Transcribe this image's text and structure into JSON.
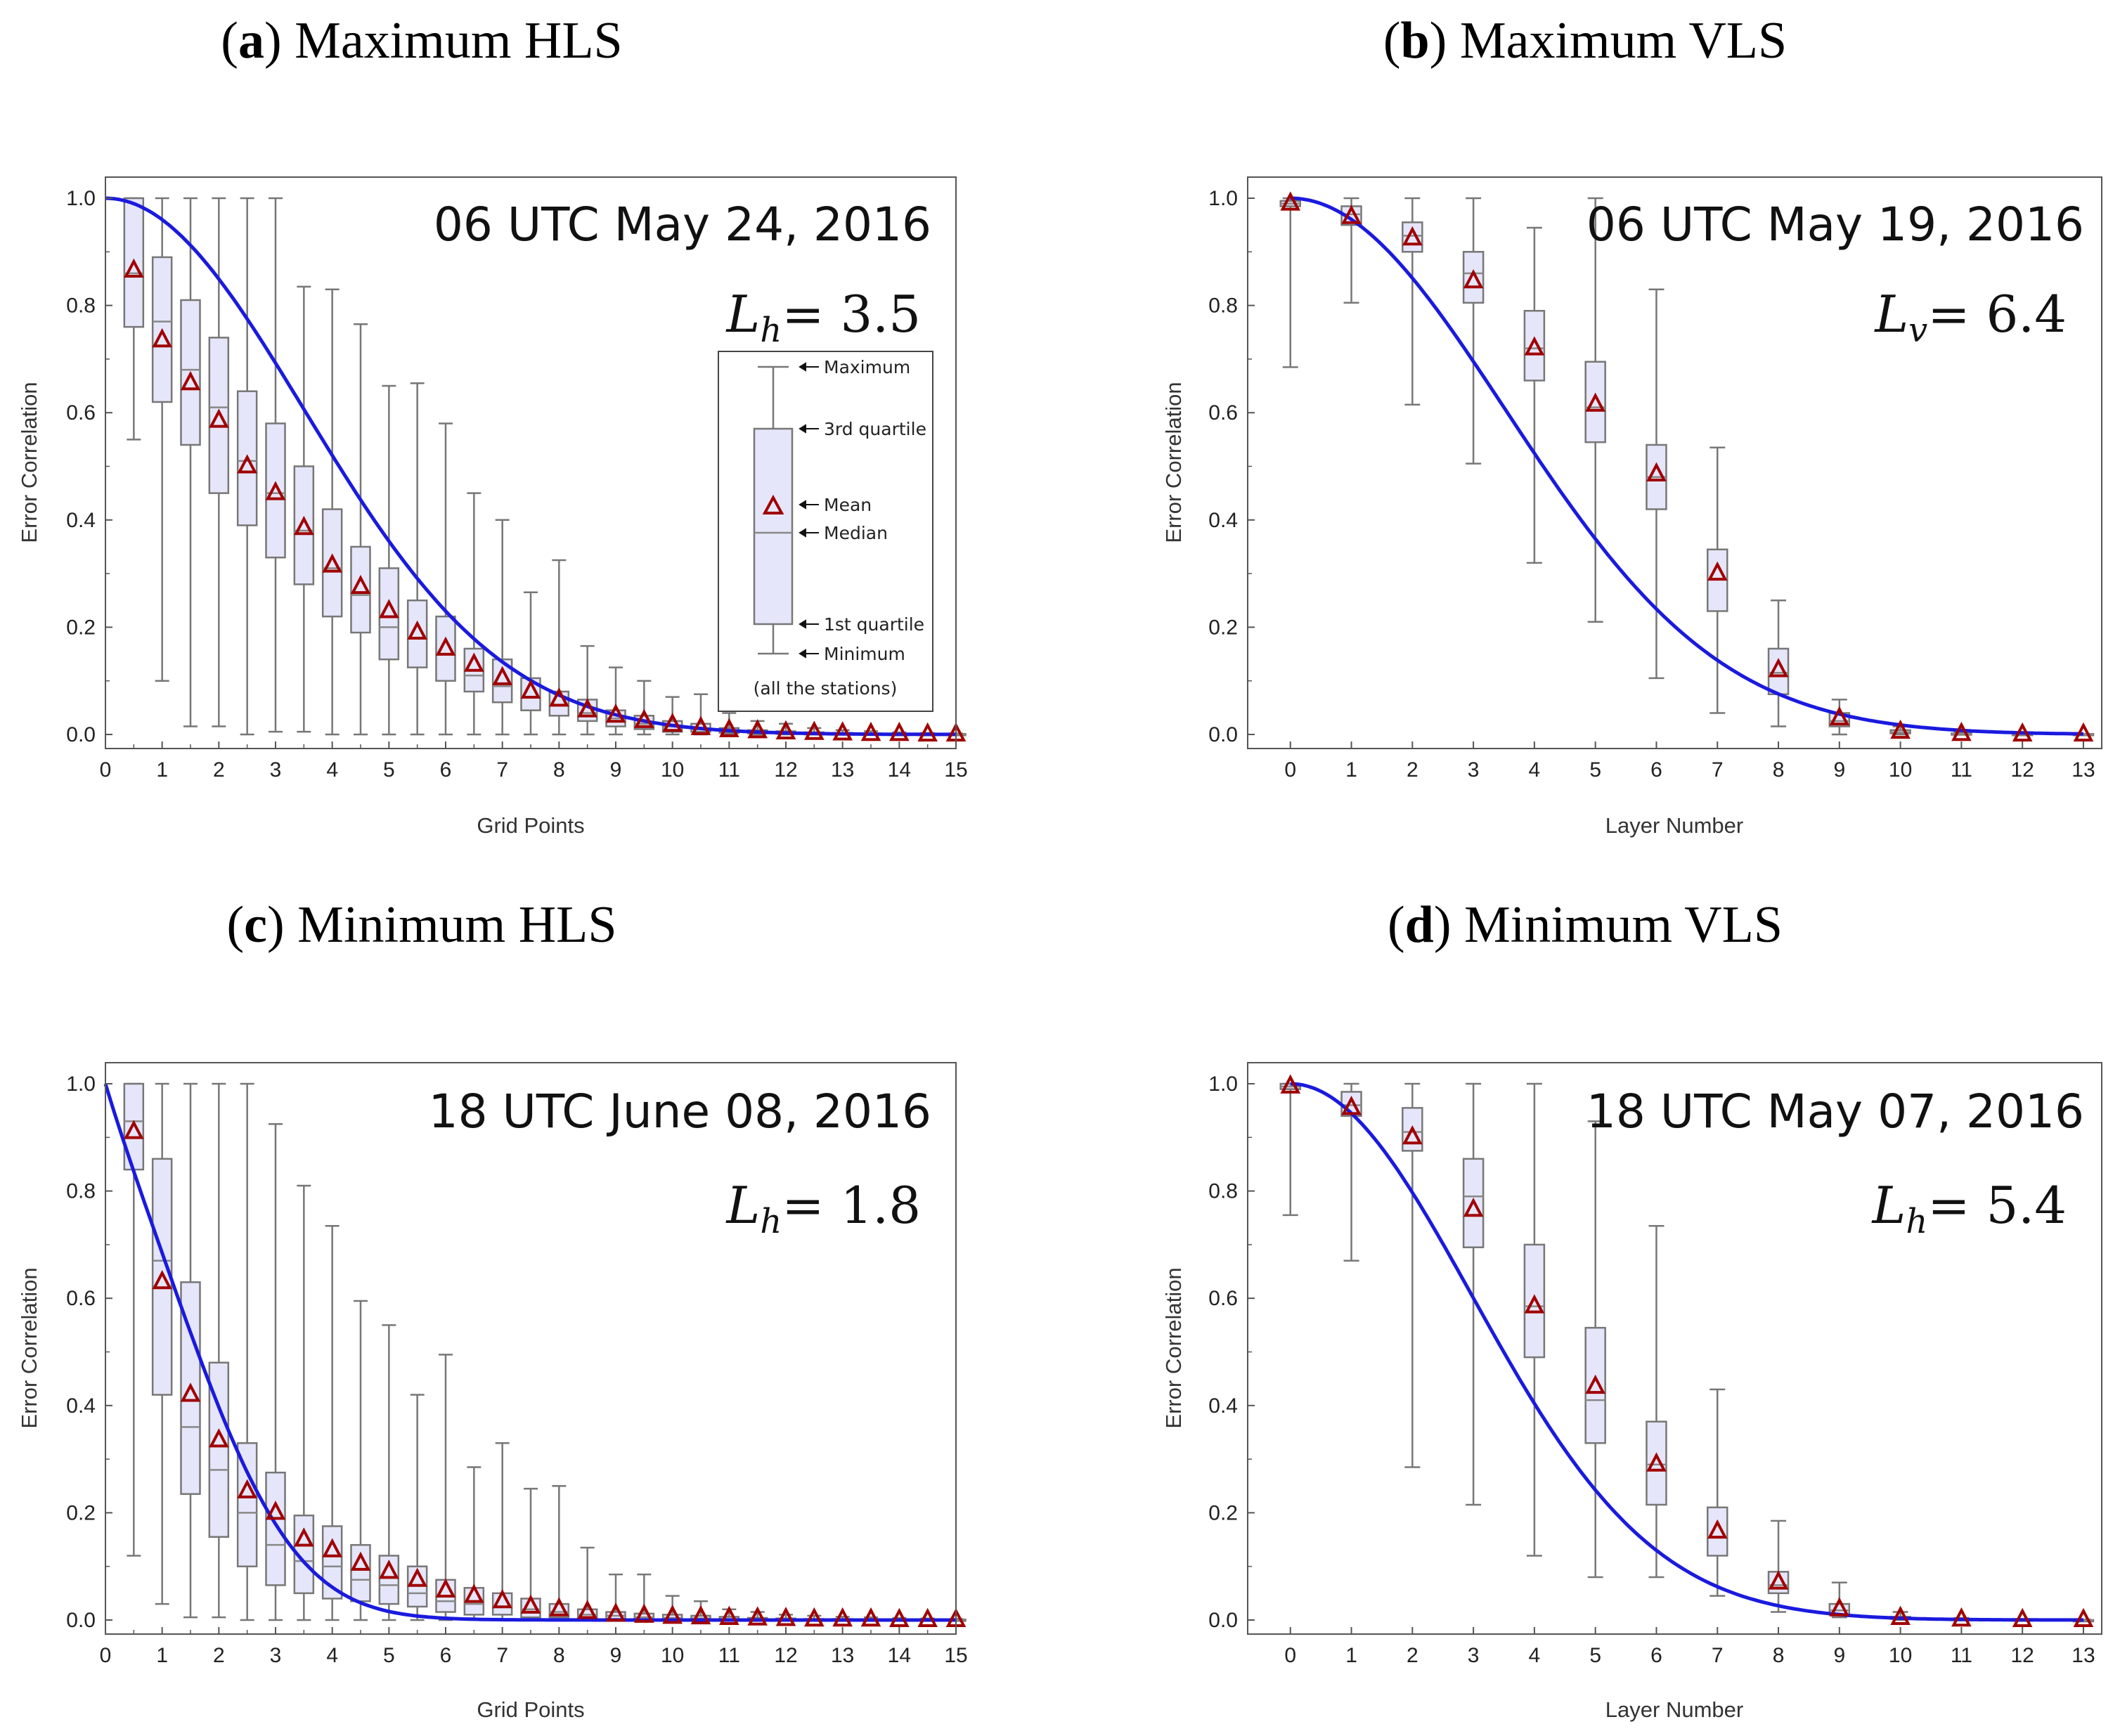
{
  "figure": {
    "panels": 4
  },
  "legend": {
    "maximum": "Maximum",
    "third_quartile": "3rd quartile",
    "mean": "Mean",
    "median": "Median",
    "first_quartile": "1st quartile",
    "minimum": "Minimum",
    "note": "(all the stations)"
  },
  "chart_data": [
    {
      "type": "box",
      "label": "a",
      "title": "Maximum HLS",
      "stamp": "06 UTC May 24, 2016",
      "length_scale": {
        "symbol": "L",
        "subscript": "h",
        "value": "= 3.5"
      },
      "xlabel": "Grid Points",
      "ylabel": "Error Correlation",
      "xlim": [
        0,
        15
      ],
      "ylim": [
        0,
        1.0
      ],
      "xticks": [
        "0",
        "1",
        "2",
        "3",
        "4",
        "5",
        "6",
        "7",
        "8",
        "9",
        "10",
        "11",
        "12",
        "13",
        "14",
        "15"
      ],
      "yticks": [
        "0.0",
        "0.2",
        "0.4",
        "0.6",
        "0.8",
        "1.0"
      ],
      "fit_curve": {
        "form": "gaussian_in_distance",
        "L": 3.5,
        "x_range": [
          0,
          15
        ]
      },
      "boxes": [
        {
          "x": 0.5,
          "min": 0.55,
          "q1": 0.76,
          "median": 0.86,
          "q3": 1.0,
          "max": 1.0,
          "mean": 0.865
        },
        {
          "x": 1.0,
          "min": 0.1,
          "q1": 0.62,
          "median": 0.77,
          "q3": 0.89,
          "max": 1.0,
          "mean": 0.735
        },
        {
          "x": 1.5,
          "min": 0.015,
          "q1": 0.54,
          "median": 0.68,
          "q3": 0.81,
          "max": 1.0,
          "mean": 0.655
        },
        {
          "x": 2.0,
          "min": 0.015,
          "q1": 0.45,
          "median": 0.61,
          "q3": 0.74,
          "max": 1.0,
          "mean": 0.585
        },
        {
          "x": 2.5,
          "min": 0.0,
          "q1": 0.39,
          "median": 0.51,
          "q3": 0.64,
          "max": 1.0,
          "mean": 0.5
        },
        {
          "x": 3.0,
          "min": 0.005,
          "q1": 0.33,
          "median": 0.45,
          "q3": 0.58,
          "max": 1.0,
          "mean": 0.45
        },
        {
          "x": 3.5,
          "min": 0.005,
          "q1": 0.28,
          "median": 0.38,
          "q3": 0.5,
          "max": 0.835,
          "mean": 0.385
        },
        {
          "x": 4.0,
          "min": 0.0,
          "q1": 0.22,
          "median": 0.31,
          "q3": 0.42,
          "max": 0.83,
          "mean": 0.315
        },
        {
          "x": 4.5,
          "min": 0.0,
          "q1": 0.19,
          "median": 0.26,
          "q3": 0.35,
          "max": 0.765,
          "mean": 0.275
        },
        {
          "x": 5.0,
          "min": 0.0,
          "q1": 0.14,
          "median": 0.2,
          "q3": 0.31,
          "max": 0.65,
          "mean": 0.23
        },
        {
          "x": 5.5,
          "min": 0.0,
          "q1": 0.125,
          "median": 0.18,
          "q3": 0.25,
          "max": 0.655,
          "mean": 0.19
        },
        {
          "x": 6.0,
          "min": 0.0,
          "q1": 0.1,
          "median": 0.15,
          "q3": 0.22,
          "max": 0.58,
          "mean": 0.16
        },
        {
          "x": 6.5,
          "min": 0.0,
          "q1": 0.08,
          "median": 0.11,
          "q3": 0.16,
          "max": 0.45,
          "mean": 0.13
        },
        {
          "x": 7.0,
          "min": 0.0,
          "q1": 0.06,
          "median": 0.09,
          "q3": 0.14,
          "max": 0.4,
          "mean": 0.105
        },
        {
          "x": 7.5,
          "min": 0.0,
          "q1": 0.045,
          "median": 0.07,
          "q3": 0.105,
          "max": 0.265,
          "mean": 0.08
        },
        {
          "x": 8.0,
          "min": 0.0,
          "q1": 0.035,
          "median": 0.055,
          "q3": 0.08,
          "max": 0.325,
          "mean": 0.065
        },
        {
          "x": 8.5,
          "min": 0.0,
          "q1": 0.025,
          "median": 0.04,
          "q3": 0.065,
          "max": 0.165,
          "mean": 0.045
        },
        {
          "x": 9.0,
          "min": 0.0,
          "q1": 0.015,
          "median": 0.03,
          "q3": 0.045,
          "max": 0.125,
          "mean": 0.035
        },
        {
          "x": 9.5,
          "min": 0.0,
          "q1": 0.01,
          "median": 0.02,
          "q3": 0.035,
          "max": 0.1,
          "mean": 0.025
        },
        {
          "x": 10.0,
          "min": 0.0,
          "q1": 0.005,
          "median": 0.015,
          "q3": 0.025,
          "max": 0.07,
          "mean": 0.018
        },
        {
          "x": 10.5,
          "min": 0.0,
          "q1": 0.005,
          "median": 0.01,
          "q3": 0.02,
          "max": 0.075,
          "mean": 0.012
        },
        {
          "x": 11.0,
          "min": 0.0,
          "q1": 0.003,
          "median": 0.006,
          "q3": 0.012,
          "max": 0.04,
          "mean": 0.008
        },
        {
          "x": 11.5,
          "min": 0.0,
          "q1": 0.002,
          "median": 0.004,
          "q3": 0.008,
          "max": 0.025,
          "mean": 0.006
        },
        {
          "x": 12.0,
          "min": 0.0,
          "q1": 0.001,
          "median": 0.003,
          "q3": 0.006,
          "max": 0.02,
          "mean": 0.004
        },
        {
          "x": 12.5,
          "min": 0.0,
          "q1": 0.0,
          "median": 0.002,
          "q3": 0.004,
          "max": 0.012,
          "mean": 0.003
        },
        {
          "x": 13.0,
          "min": 0.0,
          "q1": 0.0,
          "median": 0.001,
          "q3": 0.003,
          "max": 0.008,
          "mean": 0.002
        },
        {
          "x": 13.5,
          "min": 0.0,
          "q1": 0.0,
          "median": 0.001,
          "q3": 0.002,
          "max": 0.006,
          "mean": 0.001
        },
        {
          "x": 14.0,
          "min": 0.0,
          "q1": 0.0,
          "median": 0.0,
          "q3": 0.001,
          "max": 0.004,
          "mean": 0.001
        },
        {
          "x": 14.5,
          "min": 0.0,
          "q1": 0.0,
          "median": 0.0,
          "q3": 0.001,
          "max": 0.003,
          "mean": 0.0
        },
        {
          "x": 15.0,
          "min": 0.0,
          "q1": 0.0,
          "median": 0.0,
          "q3": 0.001,
          "max": 0.002,
          "mean": 0.0
        }
      ]
    },
    {
      "type": "box",
      "label": "b",
      "title": "Maximum VLS",
      "stamp": "06 UTC May 19, 2016",
      "length_scale": {
        "symbol": "L",
        "subscript": "v",
        "value": "= 6.4"
      },
      "xlabel": "Layer Number",
      "ylabel": "Error Correlation",
      "xlim": [
        -0.7,
        13.3
      ],
      "ylim": [
        0,
        1.0
      ],
      "xticks": [
        "0",
        "1",
        "2",
        "3",
        "4",
        "5",
        "6",
        "7",
        "8",
        "9",
        "10",
        "11",
        "12",
        "13"
      ],
      "yticks": [
        "0.0",
        "0.2",
        "0.4",
        "0.6",
        "0.8",
        "1.0"
      ],
      "fit_curve": {
        "form": "gaussian_in_layer",
        "L": 6.4,
        "x_range": [
          0,
          13
        ]
      },
      "boxes": [
        {
          "x": 0,
          "min": 0.685,
          "q1": 0.985,
          "median": 0.99,
          "q3": 0.995,
          "max": 1.0,
          "mean": 0.99
        },
        {
          "x": 1,
          "min": 0.805,
          "q1": 0.95,
          "median": 0.97,
          "q3": 0.985,
          "max": 1.0,
          "mean": 0.965
        },
        {
          "x": 2,
          "min": 0.615,
          "q1": 0.9,
          "median": 0.93,
          "q3": 0.955,
          "max": 1.0,
          "mean": 0.925
        },
        {
          "x": 3,
          "min": 0.505,
          "q1": 0.805,
          "median": 0.86,
          "q3": 0.9,
          "max": 1.0,
          "mean": 0.845
        },
        {
          "x": 4,
          "min": 0.32,
          "q1": 0.66,
          "median": 0.72,
          "q3": 0.79,
          "max": 0.945,
          "mean": 0.72
        },
        {
          "x": 5,
          "min": 0.21,
          "q1": 0.545,
          "median": 0.61,
          "q3": 0.695,
          "max": 1.0,
          "mean": 0.615
        },
        {
          "x": 6,
          "min": 0.105,
          "q1": 0.42,
          "median": 0.48,
          "q3": 0.54,
          "max": 0.83,
          "mean": 0.485
        },
        {
          "x": 7,
          "min": 0.04,
          "q1": 0.23,
          "median": 0.29,
          "q3": 0.345,
          "max": 0.535,
          "mean": 0.3
        },
        {
          "x": 8,
          "min": 0.015,
          "q1": 0.075,
          "median": 0.115,
          "q3": 0.16,
          "max": 0.25,
          "mean": 0.12
        },
        {
          "x": 9,
          "min": 0.0,
          "q1": 0.015,
          "median": 0.025,
          "q3": 0.04,
          "max": 0.065,
          "mean": 0.03
        },
        {
          "x": 10,
          "min": 0.0,
          "q1": 0.002,
          "median": 0.004,
          "q3": 0.008,
          "max": 0.015,
          "mean": 0.005
        },
        {
          "x": 11,
          "min": 0.0,
          "q1": 0.0,
          "median": 0.001,
          "q3": 0.002,
          "max": 0.004,
          "mean": 0.001
        },
        {
          "x": 12,
          "min": 0.0,
          "q1": 0.0,
          "median": 0.0,
          "q3": 0.001,
          "max": 0.002,
          "mean": 0.0
        },
        {
          "x": 13,
          "min": 0.0,
          "q1": 0.0,
          "median": 0.0,
          "q3": 0.001,
          "max": 0.001,
          "mean": 0.0
        }
      ]
    },
    {
      "type": "box",
      "label": "c",
      "title": "Minimum HLS",
      "stamp": "18 UTC June 08, 2016",
      "length_scale": {
        "symbol": "L",
        "subscript": "h",
        "value": "= 1.8"
      },
      "xlabel": "Grid Points",
      "ylabel": "Error Correlation",
      "xlim": [
        0,
        15
      ],
      "ylim": [
        0,
        1.0
      ],
      "xticks": [
        "0",
        "1",
        "2",
        "3",
        "4",
        "5",
        "6",
        "7",
        "8",
        "9",
        "10",
        "11",
        "12",
        "13",
        "14",
        "15"
      ],
      "yticks": [
        "0.0",
        "0.2",
        "0.4",
        "0.6",
        "0.8",
        "1.0"
      ],
      "fit_curve": {
        "form": "gaussian_in_distance",
        "L": 1.8,
        "x_range": [
          0,
          15
        ]
      },
      "boxes": [
        {
          "x": 0.5,
          "min": 0.12,
          "q1": 0.84,
          "median": 0.93,
          "q3": 1.0,
          "max": 1.0,
          "mean": 0.91
        },
        {
          "x": 1.0,
          "min": 0.03,
          "q1": 0.42,
          "median": 0.67,
          "q3": 0.86,
          "max": 1.0,
          "mean": 0.63
        },
        {
          "x": 1.5,
          "min": 0.005,
          "q1": 0.235,
          "median": 0.36,
          "q3": 0.63,
          "max": 1.0,
          "mean": 0.42
        },
        {
          "x": 2.0,
          "min": 0.005,
          "q1": 0.155,
          "median": 0.28,
          "q3": 0.48,
          "max": 1.0,
          "mean": 0.335
        },
        {
          "x": 2.5,
          "min": 0.0,
          "q1": 0.1,
          "median": 0.2,
          "q3": 0.33,
          "max": 1.0,
          "mean": 0.24
        },
        {
          "x": 3.0,
          "min": 0.0,
          "q1": 0.065,
          "median": 0.14,
          "q3": 0.275,
          "max": 0.925,
          "mean": 0.2
        },
        {
          "x": 3.5,
          "min": 0.0,
          "q1": 0.05,
          "median": 0.11,
          "q3": 0.195,
          "max": 0.81,
          "mean": 0.15
        },
        {
          "x": 4.0,
          "min": 0.0,
          "q1": 0.04,
          "median": 0.1,
          "q3": 0.175,
          "max": 0.735,
          "mean": 0.13
        },
        {
          "x": 4.5,
          "min": 0.0,
          "q1": 0.035,
          "median": 0.075,
          "q3": 0.14,
          "max": 0.595,
          "mean": 0.105
        },
        {
          "x": 5.0,
          "min": 0.0,
          "q1": 0.03,
          "median": 0.065,
          "q3": 0.12,
          "max": 0.55,
          "mean": 0.09
        },
        {
          "x": 5.5,
          "min": 0.0,
          "q1": 0.025,
          "median": 0.05,
          "q3": 0.1,
          "max": 0.42,
          "mean": 0.075
        },
        {
          "x": 6.0,
          "min": 0.0,
          "q1": 0.015,
          "median": 0.035,
          "q3": 0.075,
          "max": 0.495,
          "mean": 0.055
        },
        {
          "x": 6.5,
          "min": 0.0,
          "q1": 0.01,
          "median": 0.03,
          "q3": 0.06,
          "max": 0.285,
          "mean": 0.045
        },
        {
          "x": 7.0,
          "min": 0.0,
          "q1": 0.01,
          "median": 0.025,
          "q3": 0.05,
          "max": 0.33,
          "mean": 0.035
        },
        {
          "x": 7.5,
          "min": 0.0,
          "q1": 0.005,
          "median": 0.02,
          "q3": 0.04,
          "max": 0.245,
          "mean": 0.025
        },
        {
          "x": 8.0,
          "min": 0.0,
          "q1": 0.005,
          "median": 0.015,
          "q3": 0.03,
          "max": 0.25,
          "mean": 0.02
        },
        {
          "x": 8.5,
          "min": 0.0,
          "q1": 0.003,
          "median": 0.01,
          "q3": 0.02,
          "max": 0.135,
          "mean": 0.015
        },
        {
          "x": 9.0,
          "min": 0.0,
          "q1": 0.002,
          "median": 0.008,
          "q3": 0.015,
          "max": 0.085,
          "mean": 0.01
        },
        {
          "x": 9.5,
          "min": 0.0,
          "q1": 0.001,
          "median": 0.005,
          "q3": 0.012,
          "max": 0.085,
          "mean": 0.008
        },
        {
          "x": 10.0,
          "min": 0.0,
          "q1": 0.001,
          "median": 0.004,
          "q3": 0.01,
          "max": 0.045,
          "mean": 0.006
        },
        {
          "x": 10.5,
          "min": 0.0,
          "q1": 0.0,
          "median": 0.003,
          "q3": 0.008,
          "max": 0.035,
          "mean": 0.005
        },
        {
          "x": 11.0,
          "min": 0.0,
          "q1": 0.0,
          "median": 0.002,
          "q3": 0.006,
          "max": 0.02,
          "mean": 0.004
        },
        {
          "x": 11.5,
          "min": 0.0,
          "q1": 0.0,
          "median": 0.001,
          "q3": 0.004,
          "max": 0.015,
          "mean": 0.003
        },
        {
          "x": 12.0,
          "min": 0.0,
          "q1": 0.0,
          "median": 0.001,
          "q3": 0.003,
          "max": 0.01,
          "mean": 0.002
        },
        {
          "x": 12.5,
          "min": 0.0,
          "q1": 0.0,
          "median": 0.0,
          "q3": 0.002,
          "max": 0.008,
          "mean": 0.001
        },
        {
          "x": 13.0,
          "min": 0.0,
          "q1": 0.0,
          "median": 0.0,
          "q3": 0.002,
          "max": 0.006,
          "mean": 0.001
        },
        {
          "x": 13.5,
          "min": 0.0,
          "q1": 0.0,
          "median": 0.0,
          "q3": 0.001,
          "max": 0.005,
          "mean": 0.001
        },
        {
          "x": 14.0,
          "min": 0.0,
          "q1": 0.0,
          "median": 0.0,
          "q3": 0.001,
          "max": 0.004,
          "mean": 0.0
        },
        {
          "x": 14.5,
          "min": 0.0,
          "q1": 0.0,
          "median": 0.0,
          "q3": 0.001,
          "max": 0.003,
          "mean": 0.0
        },
        {
          "x": 15.0,
          "min": 0.0,
          "q1": 0.0,
          "median": 0.0,
          "q3": 0.001,
          "max": 0.002,
          "mean": 0.0
        }
      ]
    },
    {
      "type": "box",
      "label": "d",
      "title": "Minimum VLS",
      "stamp": "18 UTC May 07, 2016",
      "length_scale": {
        "symbol": "L",
        "subscript": "h",
        "value": "= 5.4"
      },
      "xlabel": "Layer Number",
      "ylabel": "Error Correlation",
      "xlim": [
        -0.7,
        13.3
      ],
      "ylim": [
        0,
        1.0
      ],
      "xticks": [
        "0",
        "1",
        "2",
        "3",
        "4",
        "5",
        "6",
        "7",
        "8",
        "9",
        "10",
        "11",
        "12",
        "13"
      ],
      "yticks": [
        "0.0",
        "0.2",
        "0.4",
        "0.6",
        "0.8",
        "1.0"
      ],
      "fit_curve": {
        "form": "gaussian_in_layer",
        "L": 5.4,
        "x_range": [
          0,
          13
        ]
      },
      "boxes": [
        {
          "x": 0,
          "min": 0.755,
          "q1": 0.99,
          "median": 0.995,
          "q3": 1.0,
          "max": 1.0,
          "mean": 0.995
        },
        {
          "x": 1,
          "min": 0.67,
          "q1": 0.94,
          "median": 0.96,
          "q3": 0.985,
          "max": 1.0,
          "mean": 0.955
        },
        {
          "x": 2,
          "min": 0.285,
          "q1": 0.875,
          "median": 0.91,
          "q3": 0.955,
          "max": 1.0,
          "mean": 0.9
        },
        {
          "x": 3,
          "min": 0.215,
          "q1": 0.695,
          "median": 0.79,
          "q3": 0.86,
          "max": 1.0,
          "mean": 0.765
        },
        {
          "x": 4,
          "min": 0.12,
          "q1": 0.49,
          "median": 0.585,
          "q3": 0.7,
          "max": 1.0,
          "mean": 0.585
        },
        {
          "x": 5,
          "min": 0.08,
          "q1": 0.33,
          "median": 0.41,
          "q3": 0.545,
          "max": 0.93,
          "mean": 0.435
        },
        {
          "x": 6,
          "min": 0.08,
          "q1": 0.215,
          "median": 0.29,
          "q3": 0.37,
          "max": 0.735,
          "mean": 0.29
        },
        {
          "x": 7,
          "min": 0.045,
          "q1": 0.12,
          "median": 0.155,
          "q3": 0.21,
          "max": 0.43,
          "mean": 0.165
        },
        {
          "x": 8,
          "min": 0.015,
          "q1": 0.05,
          "median": 0.065,
          "q3": 0.09,
          "max": 0.185,
          "mean": 0.07
        },
        {
          "x": 9,
          "min": 0.005,
          "q1": 0.01,
          "median": 0.018,
          "q3": 0.03,
          "max": 0.07,
          "mean": 0.02
        },
        {
          "x": 10,
          "min": 0.0,
          "q1": 0.002,
          "median": 0.004,
          "q3": 0.006,
          "max": 0.015,
          "mean": 0.004
        },
        {
          "x": 11,
          "min": 0.0,
          "q1": 0.0,
          "median": 0.001,
          "q3": 0.002,
          "max": 0.004,
          "mean": 0.001
        },
        {
          "x": 12,
          "min": 0.0,
          "q1": 0.0,
          "median": 0.0,
          "q3": 0.001,
          "max": 0.002,
          "mean": 0.0
        },
        {
          "x": 13,
          "min": 0.0,
          "q1": 0.0,
          "median": 0.0,
          "q3": 0.0,
          "max": 0.001,
          "mean": 0.0
        }
      ]
    }
  ]
}
